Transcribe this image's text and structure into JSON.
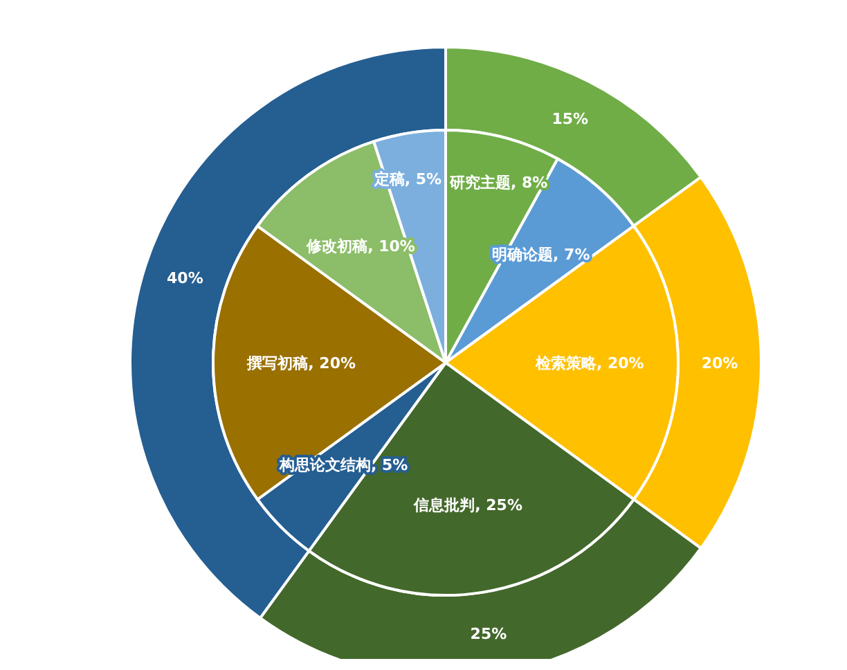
{
  "chart_data": [
    {
      "type": "donut",
      "categories": [
        null,
        null,
        null,
        null
      ],
      "values": [
        15,
        20,
        25,
        40
      ],
      "colors": [
        "#70ad47",
        "#ffc000",
        "#43682b",
        "#255e91"
      ],
      "value_labels": [
        "15%",
        "20%",
        "25%",
        "40%"
      ]
    },
    {
      "type": "pie",
      "categories": [
        "研究主题",
        "明确论题",
        "检索策略",
        "信息批判",
        "构思论文结构",
        "撰写初稿",
        "修改初稿",
        "定稿"
      ],
      "values": [
        8,
        7,
        20,
        25,
        5,
        20,
        10,
        5
      ],
      "colors": [
        "#70ad47",
        "#5b9bd5",
        "#ffc000",
        "#43682b",
        "#255e91",
        "#9a7000",
        "#8cbd68",
        "#7cafdd"
      ],
      "value_labels": [
        "8%",
        "7%",
        "20%",
        "25%",
        "5%",
        "20%",
        "10%",
        "5%"
      ]
    }
  ]
}
